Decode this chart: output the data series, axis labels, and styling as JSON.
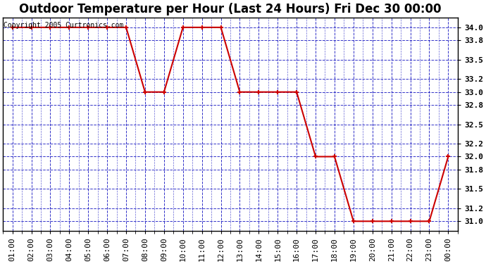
{
  "title": "Outdoor Temperature per Hour (Last 24 Hours) Fri Dec 30 00:00",
  "copyright": "Copyright 2005 Curtronics.com",
  "x_labels": [
    "01:00",
    "02:00",
    "03:00",
    "04:00",
    "05:00",
    "06:00",
    "07:00",
    "08:00",
    "09:00",
    "10:00",
    "11:00",
    "12:00",
    "13:00",
    "14:00",
    "15:00",
    "16:00",
    "17:00",
    "18:00",
    "19:00",
    "20:00",
    "21:00",
    "22:00",
    "23:00",
    "00:00"
  ],
  "y_values": [
    34.0,
    34.0,
    34.0,
    34.0,
    34.0,
    34.0,
    34.0,
    33.0,
    33.0,
    34.0,
    34.0,
    34.0,
    33.0,
    33.0,
    33.0,
    33.0,
    32.0,
    32.0,
    31.0,
    31.0,
    31.0,
    31.0,
    31.0,
    32.0
  ],
  "ylim_min": 30.85,
  "ylim_max": 34.15,
  "yticks": [
    31.0,
    31.2,
    31.5,
    31.8,
    32.0,
    32.2,
    32.5,
    32.8,
    33.0,
    33.2,
    33.5,
    33.8,
    34.0
  ],
  "line_color": "#cc0000",
  "marker_color": "#cc0000",
  "fig_bg_color": "#ffffff",
  "plot_bg_color": "#ffffff",
  "grid_color": "#0000bb",
  "title_fontsize": 12,
  "copyright_fontsize": 7,
  "tick_fontsize": 8,
  "border_color": "#000000",
  "title_bg": "#ffffff"
}
